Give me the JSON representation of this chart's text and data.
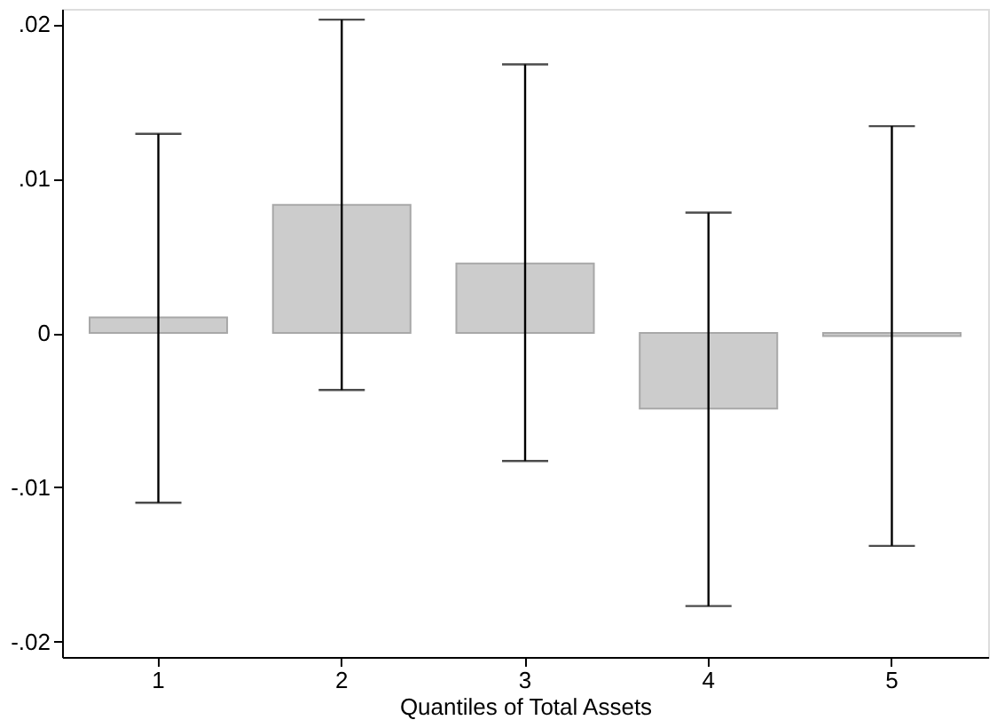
{
  "chart_data": {
    "type": "bar",
    "xlabel": "Quantiles of Total Assets",
    "categories": [
      "1",
      "2",
      "3",
      "4",
      "5"
    ],
    "series": [
      {
        "color": "#cccccc",
        "values": [
          0.001,
          0.0083,
          0.0045,
          -0.0049,
          -0.0002
        ],
        "errors": [
          [
            -0.011,
            0.0129
          ],
          [
            -0.0037,
            0.0203
          ],
          [
            -0.0083,
            0.0174
          ],
          [
            -0.0177,
            0.0078
          ],
          [
            -0.0138,
            0.0134
          ]
        ]
      }
    ],
    "ylim": [
      -0.021,
      0.021
    ],
    "yticks": [
      {
        "value": -0.02,
        "label": "-.02"
      },
      {
        "value": -0.01,
        "label": "-.01"
      },
      0,
      {
        "value": 0.01,
        "label": ".01"
      },
      {
        "value": 0.02,
        "label": ".02"
      }
    ],
    "grid": false
  }
}
